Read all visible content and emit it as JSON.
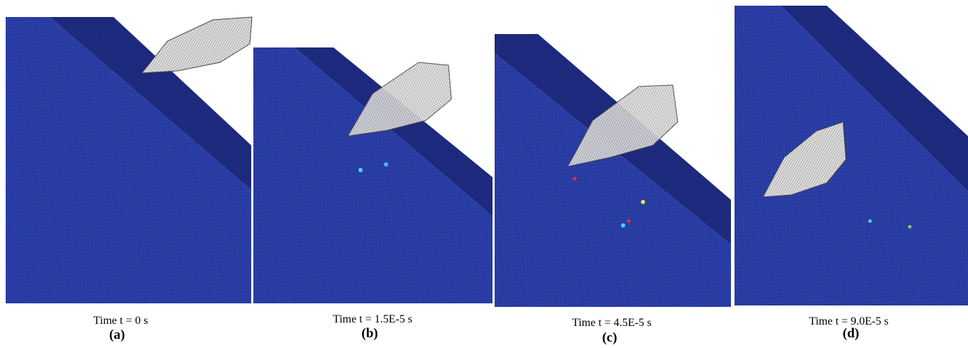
{
  "panels": [
    {
      "time": "Time t = 0 s",
      "label": "(a)"
    },
    {
      "time": "Time t = 1.5E-5 s",
      "label": "(b)"
    },
    {
      "time": "Time t = 4.5E-5 s",
      "label": "(c)"
    },
    {
      "time": "Time t = 9.0E-5 s",
      "label": "(d)"
    }
  ]
}
